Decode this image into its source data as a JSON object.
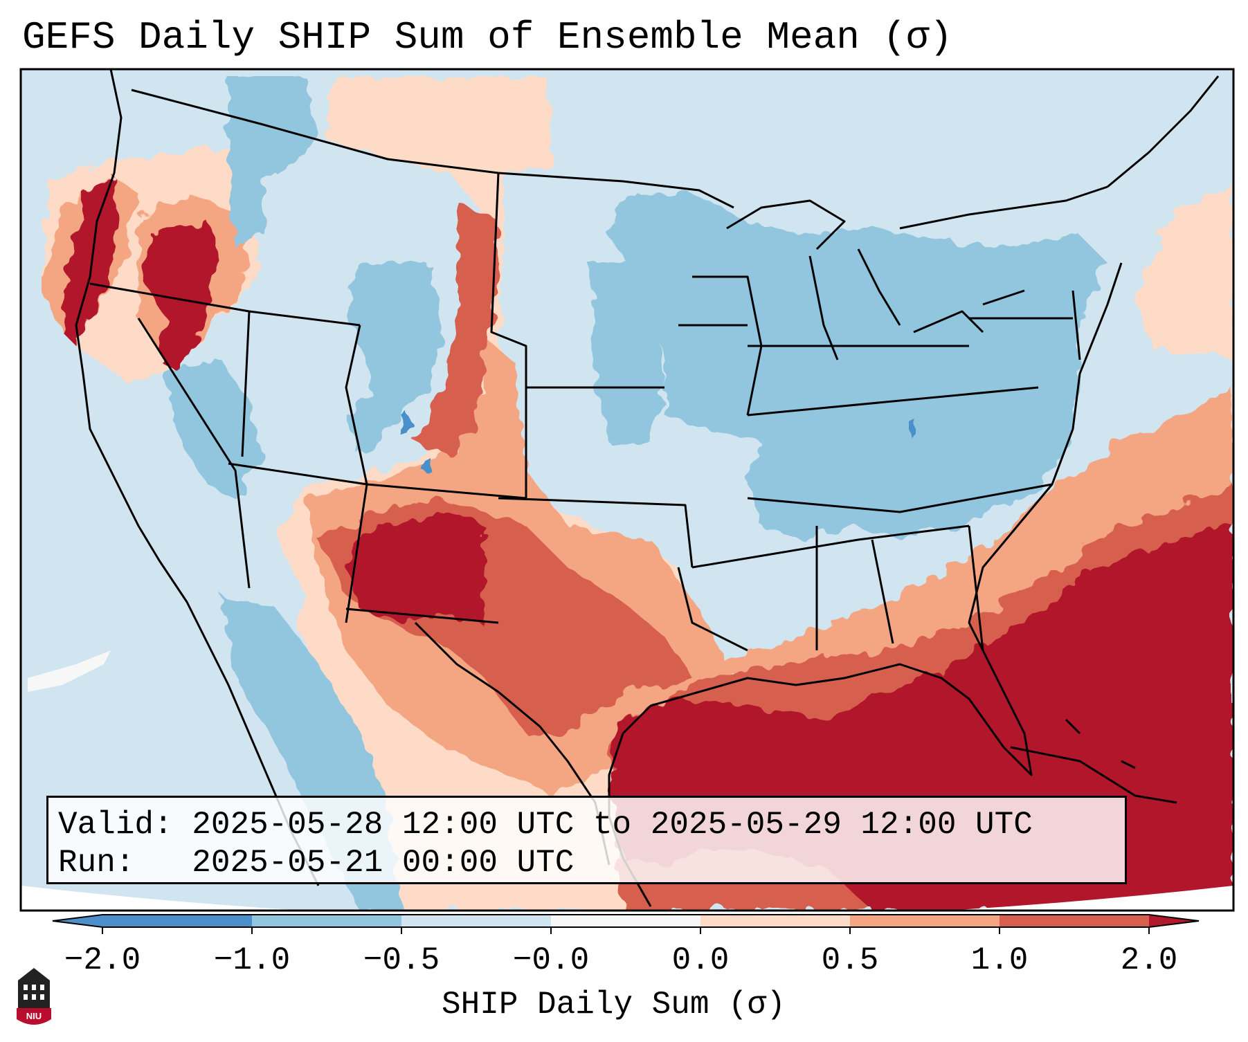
{
  "title": "GEFS Daily SHIP Sum of Ensemble Mean (σ)",
  "info": {
    "valid_label": "Valid:",
    "valid_value": "2025-05-28 12:00 UTC to 2025-05-29 12:00 UTC",
    "run_label": "Run:",
    "run_value": "2025-05-21 00:00 UTC"
  },
  "colorbar": {
    "label": "SHIP Daily Sum (σ)",
    "ticks": [
      "−2.0",
      "−1.0",
      "−0.5",
      "−0.0",
      "0.0",
      "0.5",
      "1.0",
      "2.0"
    ],
    "colors": [
      "#4a8fc9",
      "#92c5de",
      "#d1e5f0",
      "#f7f7f7",
      "#fddbc7",
      "#f4a582",
      "#d6604d",
      "#b2182b"
    ],
    "extend": "both"
  },
  "map": {
    "region": "Contiguous United States",
    "background_color": "#d1e5f0",
    "outside_color": "#ffffff",
    "boundary_color": "#000000",
    "anomaly_areas": [
      {
        "name": "pacific-northwest",
        "level": 2.0
      },
      {
        "name": "great-basin-north",
        "level": 2.0
      },
      {
        "name": "new-mexico-arizona",
        "level": 2.0
      },
      {
        "name": "texas",
        "level": 1.0
      },
      {
        "name": "gulf-of-mexico",
        "level": 2.0
      },
      {
        "name": "atlantic-southeast",
        "level": 2.0
      },
      {
        "name": "midwest",
        "level": -1.0
      },
      {
        "name": "mid-atlantic",
        "level": -1.0
      },
      {
        "name": "colorado-wyoming",
        "level": -0.5
      }
    ]
  },
  "logo": {
    "text": "NIU",
    "colors": {
      "shield": "#ba0c2f",
      "tower": "#222222"
    }
  }
}
